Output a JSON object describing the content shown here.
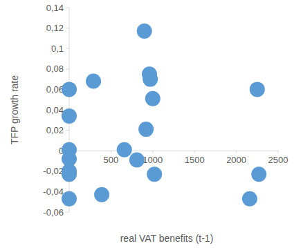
{
  "chart_data": {
    "type": "scatter",
    "x_label": "real VAT benefits (t-1)",
    "y_label": "TFP growth rate",
    "x": [
      900,
      960,
      970,
      290,
      0,
      2250,
      1000,
      0,
      920,
      0,
      660,
      0,
      810,
      0,
      0,
      1020,
      2270,
      390,
      0,
      2160
    ],
    "values": [
      0.117,
      0.075,
      0.07,
      0.068,
      0.06,
      0.06,
      0.051,
      0.034,
      0.021,
      0.001,
      0.001,
      -0.008,
      -0.009,
      -0.02,
      -0.023,
      -0.023,
      -0.023,
      -0.043,
      -0.047,
      -0.047
    ],
    "color": "#5b9bd5",
    "marker": "circle",
    "xlim": [
      0,
      2500
    ],
    "xticks": [
      0,
      500,
      1000,
      1500,
      2000,
      2500
    ],
    "ylim": [
      -0.06,
      0.14
    ],
    "yticks": [
      {
        "value": -0.06,
        "label": "-0,06"
      },
      {
        "value": -0.04,
        "label": "-0,04"
      },
      {
        "value": -0.02,
        "label": "-0,02"
      },
      0,
      {
        "value": 0.02,
        "label": "0,02"
      },
      {
        "value": 0.04,
        "label": "0,04"
      },
      {
        "value": 0.06,
        "label": "0,06"
      },
      {
        "value": 0.08,
        "label": "0,08"
      },
      {
        "value": 0.1,
        "label": "0,1"
      },
      {
        "value": 0.12,
        "label": "0,12"
      },
      {
        "value": 0.14,
        "label": "0,14"
      }
    ],
    "grid": false
  }
}
